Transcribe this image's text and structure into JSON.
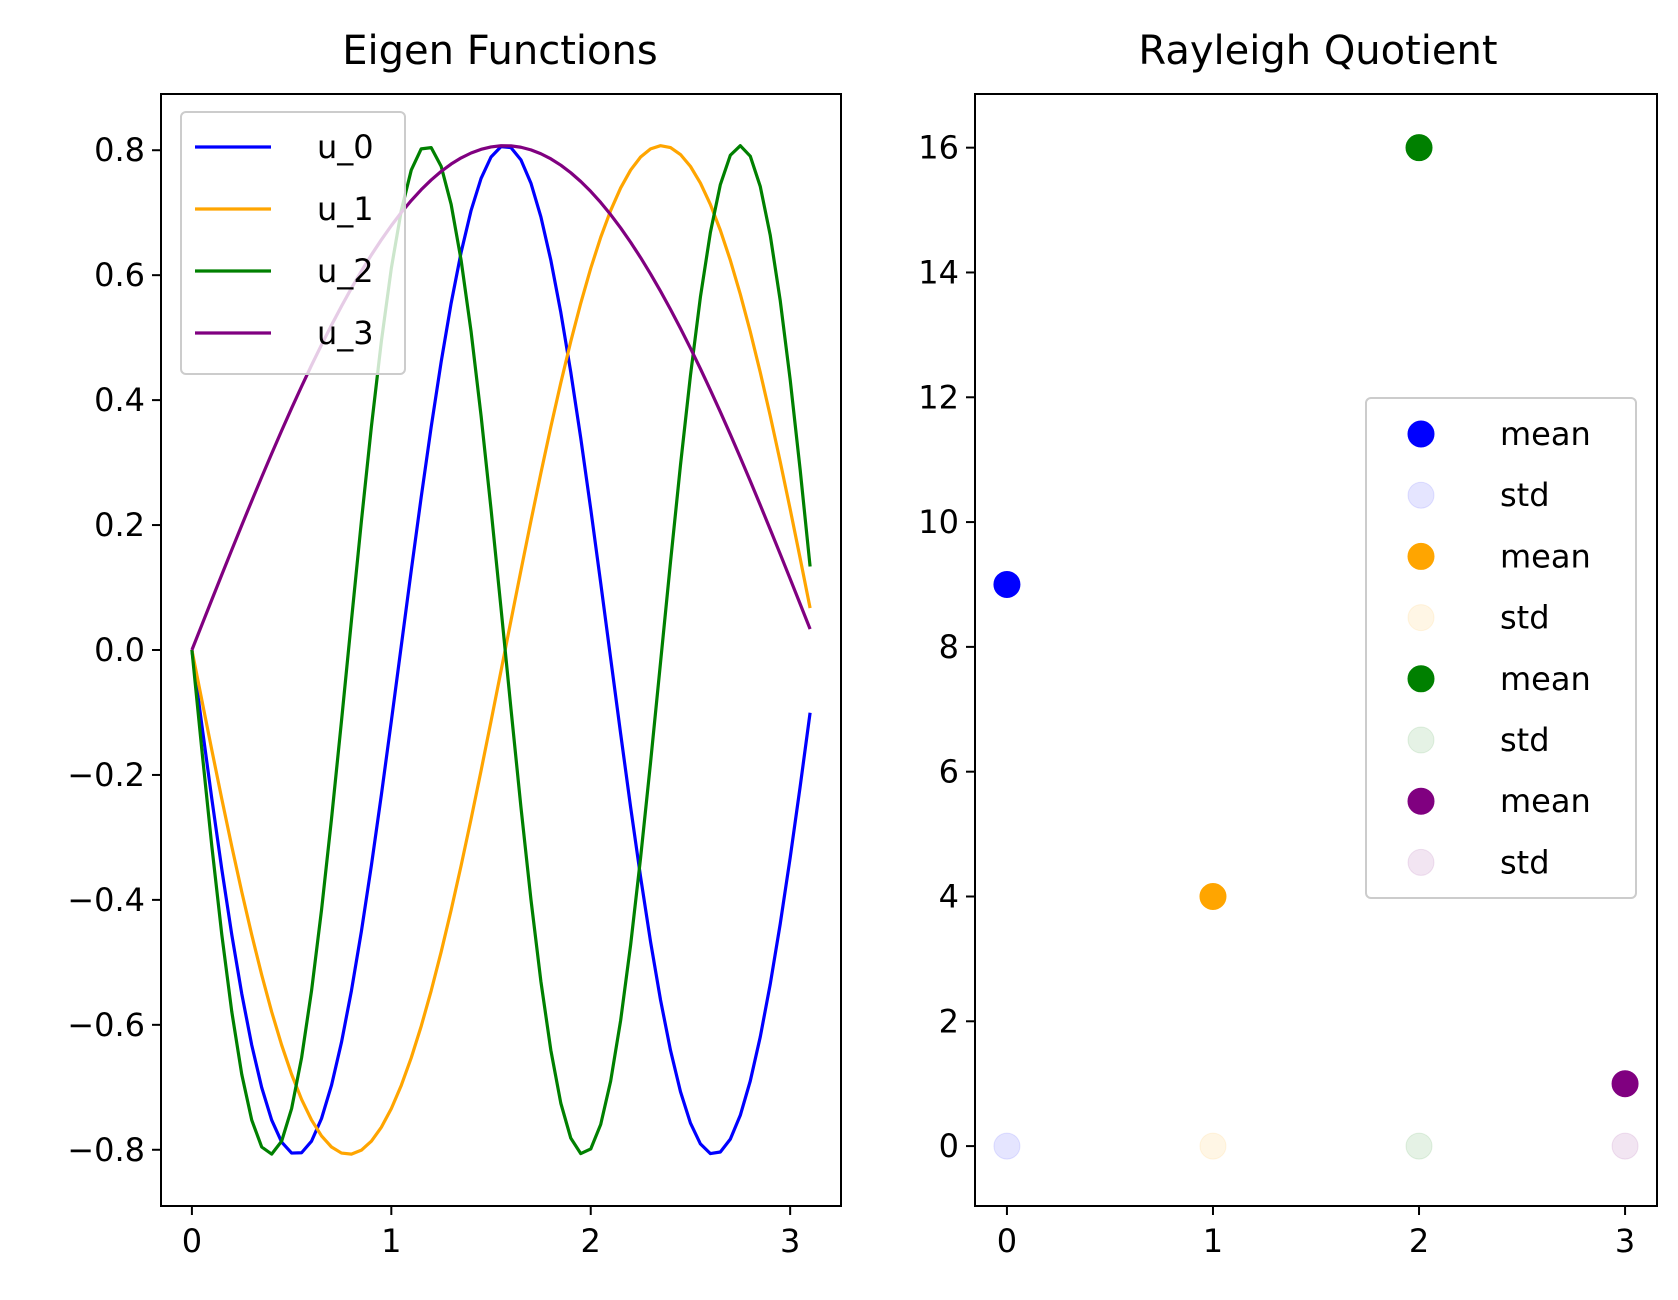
{
  "chart_data": [
    {
      "type": "line",
      "title": "Eigen Functions",
      "xlabel": "",
      "ylabel": "",
      "xlim": [
        -0.155,
        3.255
      ],
      "ylim": [
        -0.89,
        0.89
      ],
      "xticks": [
        0,
        1,
        2,
        3
      ],
      "xtick_labels": [
        "0",
        "1",
        "2",
        "3"
      ],
      "yticks": [
        -0.8,
        -0.6,
        -0.4,
        -0.2,
        0.0,
        0.2,
        0.4,
        0.6,
        0.8
      ],
      "ytick_labels": [
        "−0.8",
        "−0.6",
        "−0.4",
        "−0.2",
        "0.0",
        "0.2",
        "0.4",
        "0.6",
        "0.8"
      ],
      "grid": false,
      "legend_position": "upper-left",
      "x_range": [
        0,
        3.1
      ],
      "x_step": 0.05,
      "series": [
        {
          "name": "u_0",
          "color": "#0000ff",
          "amplitude": 0.8073,
          "frequency": 3,
          "sign": -1
        },
        {
          "name": "u_1",
          "color": "#ffa500",
          "amplitude": 0.8073,
          "frequency": 2,
          "sign": -1
        },
        {
          "name": "u_2",
          "color": "#008000",
          "amplitude": 0.8073,
          "frequency": 4,
          "sign": -1
        },
        {
          "name": "u_3",
          "color": "#800080",
          "amplitude": 0.8073,
          "frequency": 1,
          "sign": 1
        }
      ]
    },
    {
      "type": "scatter",
      "title": "Rayleigh Quotient",
      "xlabel": "",
      "ylabel": "",
      "xlim": [
        -0.155,
        3.155
      ],
      "ylim": [
        -0.96,
        16.86
      ],
      "xticks": [
        0,
        1,
        2,
        3
      ],
      "xtick_labels": [
        "0",
        "1",
        "2",
        "3"
      ],
      "yticks": [
        0,
        2,
        4,
        6,
        8,
        10,
        12,
        14,
        16
      ],
      "ytick_labels": [
        "0",
        "2",
        "4",
        "6",
        "8",
        "10",
        "12",
        "14",
        "16"
      ],
      "grid": false,
      "legend_position": "center-right",
      "series": [
        {
          "name": "mean",
          "color": "#0000ff",
          "opacity": 1.0,
          "x": [
            0
          ],
          "y": [
            9
          ]
        },
        {
          "name": "std",
          "color": "#0000ff",
          "opacity": 0.1,
          "x": [
            0
          ],
          "y": [
            0
          ]
        },
        {
          "name": "mean",
          "color": "#ffa500",
          "opacity": 1.0,
          "x": [
            1
          ],
          "y": [
            4
          ]
        },
        {
          "name": "std",
          "color": "#ffa500",
          "opacity": 0.1,
          "x": [
            1
          ],
          "y": [
            0
          ]
        },
        {
          "name": "mean",
          "color": "#008000",
          "opacity": 1.0,
          "x": [
            2
          ],
          "y": [
            16
          ]
        },
        {
          "name": "std",
          "color": "#008000",
          "opacity": 0.1,
          "x": [
            2
          ],
          "y": [
            0
          ]
        },
        {
          "name": "mean",
          "color": "#800080",
          "opacity": 1.0,
          "x": [
            3
          ],
          "y": [
            1
          ]
        },
        {
          "name": "std",
          "color": "#800080",
          "opacity": 0.1,
          "x": [
            3
          ],
          "y": [
            0
          ]
        }
      ]
    }
  ]
}
